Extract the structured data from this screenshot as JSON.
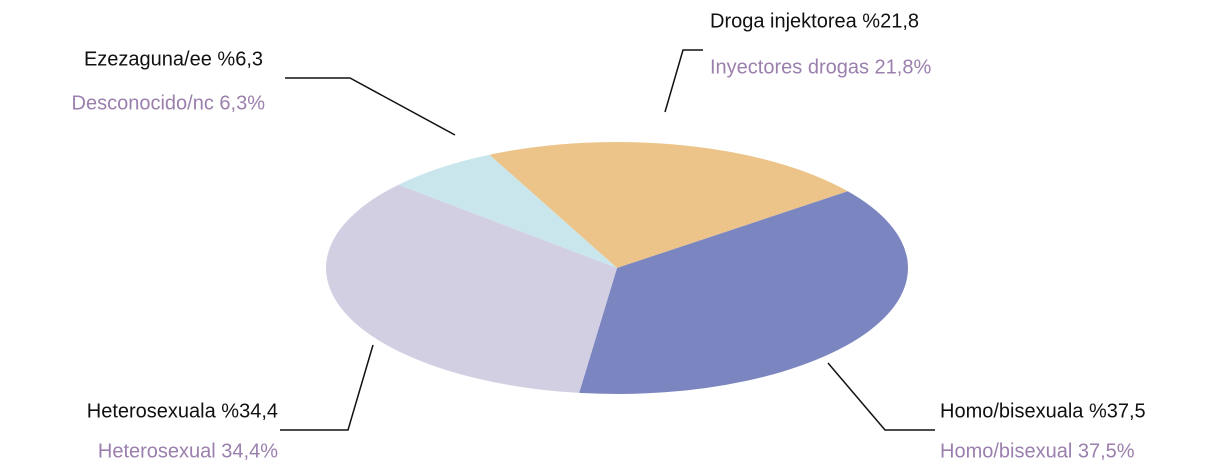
{
  "chart_data": {
    "type": "pie",
    "categories": [
      "Droga injektorea %21,8",
      "Homo/bisexuala %37,5",
      "Heterosexuala %34,4",
      "Ezezaguna/ee %6,3"
    ],
    "values": [
      21.8,
      37.5,
      34.4,
      6.3
    ],
    "value_labels": [
      "Inyectores drogas 21,8%",
      "Homo/bisexual 37,5%",
      "Heterosexual 34,4%",
      "Desconocido/nc 6,3%"
    ],
    "colors": [
      "#ecc48a",
      "#7b86c0",
      "#d3cfe3",
      "#c8e6ec"
    ]
  }
}
